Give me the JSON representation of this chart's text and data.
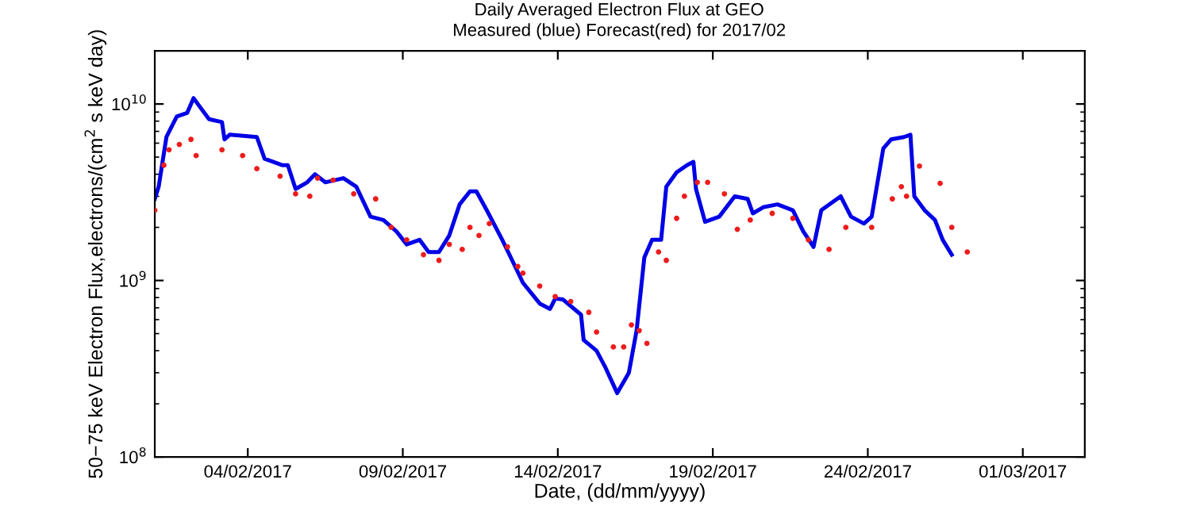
{
  "chart_data": {
    "type": "line",
    "title": "Daily Averaged Electron Flux at GEO",
    "subtitle": "Measured (blue) Forecast(red) for 2017/02",
    "xlabel": "Date, (dd/mm/yyyy)",
    "ylabel": "50−75 keV Electron Flux,electrons/(cm$^{2}$ s keV day)",
    "log": "y",
    "grid": false,
    "legend": false,
    "xlim": [
      "2017-02-01",
      "2017-03-03"
    ],
    "xticks": [
      {
        "value": "2017-02-04",
        "label": "04/02/2017"
      },
      {
        "value": "2017-02-09",
        "label": "09/02/2017"
      },
      {
        "value": "2017-02-14",
        "label": "14/02/2017"
      },
      {
        "value": "2017-02-19",
        "label": "19/02/2017"
      },
      {
        "value": "2017-02-24",
        "label": "24/02/2017"
      },
      {
        "value": "2017-03-01",
        "label": "01/03/2017"
      }
    ],
    "ylim": [
      100000000.0,
      20000000000.0
    ],
    "yticks": [
      {
        "value": 100000000.0,
        "label": "10$^{8}$"
      },
      {
        "value": 1000000000.0,
        "label": "10$^{9}$"
      },
      {
        "value": 10000000000.0,
        "label": "10$^{10}$"
      }
    ],
    "series": [
      {
        "type": "line",
        "color": "#0000e6",
        "x": [
          "2017-02-01T00:00",
          "2017-02-01T03:00",
          "2017-02-01T09:00",
          "2017-02-01T17:00",
          "2017-02-02T01:00",
          "2017-02-02T06:00",
          "2017-02-02T12:00",
          "2017-02-02T18:00",
          "2017-02-03T04:00",
          "2017-02-03T06:00",
          "2017-02-03T10:00",
          "2017-02-04T07:00",
          "2017-02-04T13:00",
          "2017-02-05T03:00",
          "2017-02-05T07:00",
          "2017-02-05T13:00",
          "2017-02-05T22:00",
          "2017-02-06T04:00",
          "2017-02-06T12:00",
          "2017-02-07T02:00",
          "2017-02-07T12:00",
          "2017-02-07T23:00",
          "2017-02-08T09:00",
          "2017-02-08T19:00",
          "2017-02-09T03:00",
          "2017-02-09T13:00",
          "2017-02-09T20:00",
          "2017-02-10T04:00",
          "2017-02-10T12:00",
          "2017-02-10T20:00",
          "2017-02-11T04:00",
          "2017-02-11T09:00",
          "2017-02-11T17:00",
          "2017-02-12T05:00",
          "2017-02-12T15:00",
          "2017-02-12T21:00",
          "2017-02-13T10:00",
          "2017-02-13T18:00",
          "2017-02-13T22:00",
          "2017-02-14T04:00",
          "2017-02-14T18:00",
          "2017-02-14T20:00",
          "2017-02-15T06:00",
          "2017-02-15T13:00",
          "2017-02-15T22:00",
          "2017-02-16T07:00",
          "2017-02-16T13:00",
          "2017-02-16T19:00",
          "2017-02-17T01:00",
          "2017-02-17T08:00",
          "2017-02-17T12:00",
          "2017-02-17T20:00",
          "2017-02-18T04:00",
          "2017-02-18T09:00",
          "2017-02-18T11:00",
          "2017-02-18T18:00",
          "2017-02-19T05:00",
          "2017-02-19T17:00",
          "2017-02-20T03:00",
          "2017-02-20T07:00",
          "2017-02-20T15:00",
          "2017-02-21T02:00",
          "2017-02-21T14:00",
          "2017-02-21T22:00",
          "2017-02-22T06:00",
          "2017-02-22T12:00",
          "2017-02-23T03:00",
          "2017-02-23T11:00",
          "2017-02-23T21:00",
          "2017-02-24T03:00",
          "2017-02-24T12:00",
          "2017-02-24T18:00",
          "2017-02-25T04:00",
          "2017-02-25T09:00",
          "2017-02-25T12:00",
          "2017-02-25T20:00",
          "2017-02-26T04:00",
          "2017-02-26T10:00",
          "2017-02-26T17:00"
        ],
        "values": [
          2900000000.0,
          3400000000.0,
          6500000000.0,
          8500000000.0,
          8900000000.0,
          10800000000.0,
          9400000000.0,
          8200000000.0,
          7900000000.0,
          6300000000.0,
          6700000000.0,
          6500000000.0,
          4900000000.0,
          4500000000.0,
          4500000000.0,
          3300000000.0,
          3600000000.0,
          4000000000.0,
          3600000000.0,
          3800000000.0,
          3400000000.0,
          2300000000.0,
          2200000000.0,
          1900000000.0,
          1600000000.0,
          1700000000.0,
          1450000000.0,
          1450000000.0,
          1800000000.0,
          2700000000.0,
          3200000000.0,
          3200000000.0,
          2500000000.0,
          1700000000.0,
          1200000000.0,
          970000000.0,
          740000000.0,
          690000000.0,
          790000000.0,
          780000000.0,
          640000000.0,
          460000000.0,
          400000000.0,
          320000000.0,
          230000000.0,
          300000000.0,
          520000000.0,
          1350000000.0,
          1700000000.0,
          1700000000.0,
          3400000000.0,
          4100000000.0,
          4500000000.0,
          4700000000.0,
          3300000000.0,
          2150000000.0,
          2300000000.0,
          3000000000.0,
          2900000000.0,
          2400000000.0,
          2600000000.0,
          2700000000.0,
          2500000000.0,
          1900000000.0,
          1550000000.0,
          2500000000.0,
          3000000000.0,
          2300000000.0,
          2100000000.0,
          2300000000.0,
          5600000000.0,
          6300000000.0,
          6500000000.0,
          6700000000.0,
          3000000000.0,
          2500000000.0,
          2200000000.0,
          1700000000.0,
          1400000000.0
        ]
      },
      {
        "type": "scatter",
        "color": "#ee1c1c",
        "marker": "circle",
        "x": [
          "2017-02-01T00:00",
          "2017-02-01T07:00",
          "2017-02-01T11:00",
          "2017-02-01T19:00",
          "2017-02-02T04:00",
          "2017-02-02T08:00",
          "2017-02-03T04:00",
          "2017-02-03T20:00",
          "2017-02-04T07:00",
          "2017-02-05T01:00",
          "2017-02-05T13:00",
          "2017-02-06T00:00",
          "2017-02-06T06:00",
          "2017-02-06T18:00",
          "2017-02-07T10:00",
          "2017-02-08T03:00",
          "2017-02-08T15:00",
          "2017-02-09T03:00",
          "2017-02-09T16:00",
          "2017-02-10T04:00",
          "2017-02-10T12:00",
          "2017-02-10T22:00",
          "2017-02-11T04:00",
          "2017-02-11T11:00",
          "2017-02-11T19:00",
          "2017-02-12T09:00",
          "2017-02-12T17:00",
          "2017-02-12T21:00",
          "2017-02-13T10:00",
          "2017-02-13T22:00",
          "2017-02-14T10:00",
          "2017-02-15T00:00",
          "2017-02-15T06:00",
          "2017-02-15T19:00",
          "2017-02-16T03:00",
          "2017-02-16T09:00",
          "2017-02-16T15:00",
          "2017-02-16T21:00",
          "2017-02-17T06:00",
          "2017-02-17T12:00",
          "2017-02-17T20:00",
          "2017-02-18T02:00",
          "2017-02-18T12:00",
          "2017-02-18T20:00",
          "2017-02-19T09:00",
          "2017-02-19T19:00",
          "2017-02-20T05:00",
          "2017-02-20T22:00",
          "2017-02-21T14:00",
          "2017-02-22T02:00",
          "2017-02-22T18:00",
          "2017-02-23T07:00",
          "2017-02-24T03:00",
          "2017-02-24T19:00",
          "2017-02-25T02:00",
          "2017-02-25T06:00",
          "2017-02-25T16:00",
          "2017-02-26T08:00",
          "2017-02-26T17:00",
          "2017-02-27T05:00"
        ],
        "values": [
          2500000000.0,
          4500000000.0,
          5500000000.0,
          5900000000.0,
          6300000000.0,
          5100000000.0,
          5500000000.0,
          5100000000.0,
          4300000000.0,
          3900000000.0,
          3100000000.0,
          3000000000.0,
          3800000000.0,
          3700000000.0,
          3100000000.0,
          2900000000.0,
          2000000000.0,
          1700000000.0,
          1400000000.0,
          1300000000.0,
          1600000000.0,
          1500000000.0,
          2000000000.0,
          1800000000.0,
          2100000000.0,
          1550000000.0,
          1200000000.0,
          1100000000.0,
          930000000.0,
          810000000.0,
          760000000.0,
          660000000.0,
          510000000.0,
          420000000.0,
          420000000.0,
          560000000.0,
          520000000.0,
          440000000.0,
          1450000000.0,
          1300000000.0,
          2250000000.0,
          3000000000.0,
          3600000000.0,
          3600000000.0,
          3100000000.0,
          1950000000.0,
          2200000000.0,
          2400000000.0,
          2250000000.0,
          1700000000.0,
          1500000000.0,
          2000000000.0,
          2000000000.0,
          2900000000.0,
          3400000000.0,
          3000000000.0,
          4450000000.0,
          3550000000.0,
          2000000000.0,
          1450000000.0
        ]
      }
    ]
  }
}
